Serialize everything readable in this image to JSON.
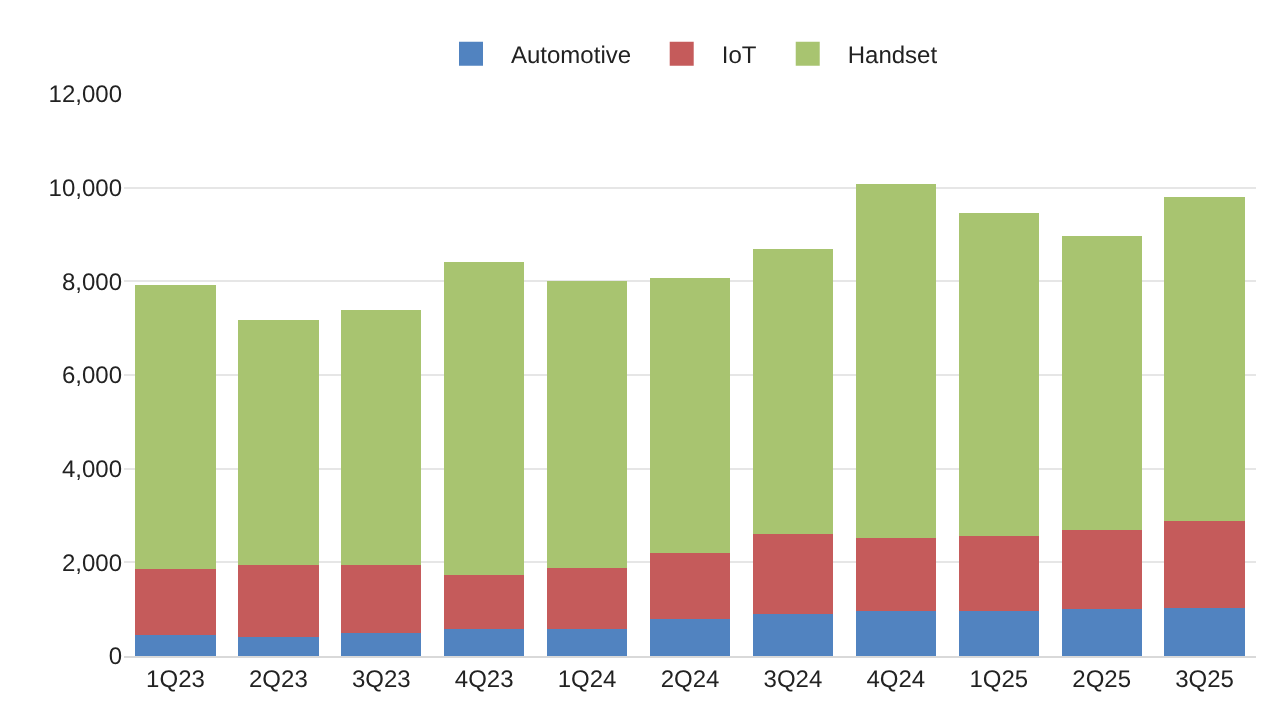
{
  "chart_data": {
    "type": "bar",
    "stacked": true,
    "categories": [
      "1Q23",
      "2Q23",
      "3Q23",
      "4Q23",
      "1Q24",
      "2Q24",
      "3Q24",
      "4Q24",
      "1Q25",
      "2Q25",
      "3Q25"
    ],
    "series": [
      {
        "name": "Automotive",
        "color": "#5183c0",
        "values": [
          440,
          410,
          500,
          570,
          570,
          800,
          900,
          960,
          960,
          1000,
          1030
        ]
      },
      {
        "name": "IoT",
        "color": "#c55b5b",
        "values": [
          1410,
          1530,
          1440,
          1170,
          1310,
          1400,
          1710,
          1560,
          1600,
          1700,
          1860
        ]
      },
      {
        "name": "Handset",
        "color": "#a8c470",
        "values": [
          6080,
          5230,
          5440,
          6680,
          6120,
          5870,
          6070,
          7560,
          6900,
          6270,
          6920
        ]
      }
    ],
    "ylim": [
      0,
      12000
    ],
    "yticks": [
      {
        "value": 0,
        "label": "0"
      },
      {
        "value": 2000,
        "label": "2,000"
      },
      {
        "value": 4000,
        "label": "4,000"
      },
      {
        "value": 6000,
        "label": "6,000"
      },
      {
        "value": 8000,
        "label": "8,000"
      },
      {
        "value": 10000,
        "label": "10,000"
      },
      {
        "value": 12000,
        "label": "12,000"
      }
    ],
    "grid": "y",
    "legend": "top"
  }
}
